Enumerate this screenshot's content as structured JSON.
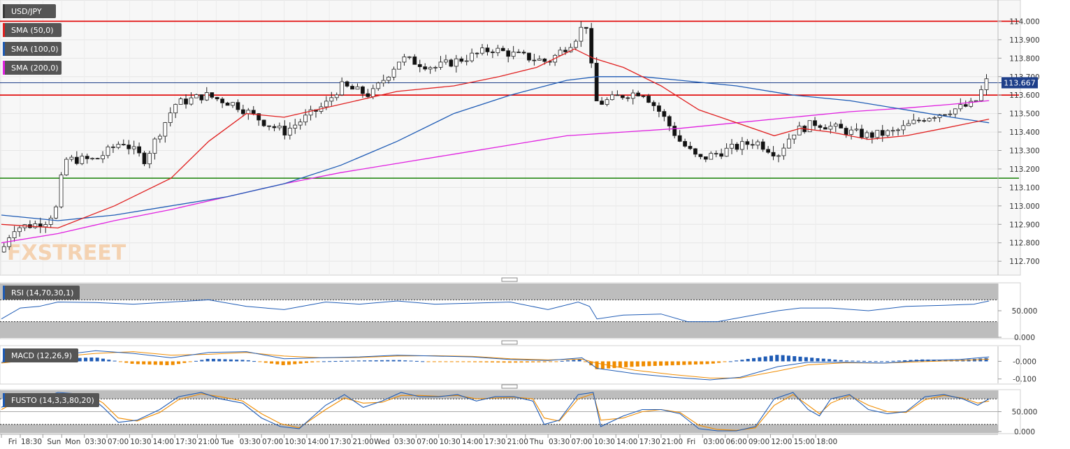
{
  "chart_data": {
    "type": "candlestick",
    "main": {
      "symbol": "USD/JPY",
      "legend": [
        {
          "label": "USD/JPY",
          "color": "#3a3a3a"
        },
        {
          "label": "SMA (50,0)",
          "color": "#e02020"
        },
        {
          "label": "SMA (100,0)",
          "color": "#1e5bb5"
        },
        {
          "label": "SMA (200,0)",
          "color": "#e020e0"
        }
      ],
      "ylim": [
        112.64,
        114.1
      ],
      "yticks": [
        "114.000",
        "113.900",
        "113.800",
        "113.700",
        "113.600",
        "113.500",
        "113.400",
        "113.300",
        "113.200",
        "113.100",
        "113.000",
        "112.900",
        "112.800",
        "112.700"
      ],
      "last_price": "113.667",
      "horizontal_lines": [
        {
          "value": 114.0,
          "color": "#e00000"
        },
        {
          "value": 113.6,
          "color": "#e00000"
        },
        {
          "value": 113.15,
          "color": "#2a8a1a"
        },
        {
          "value": 113.667,
          "color": "#1e3f8a"
        }
      ],
      "close_path": [
        [
          0,
          112.75
        ],
        [
          0.3,
          112.88
        ],
        [
          0.9,
          112.9
        ],
        [
          1.2,
          112.92
        ],
        [
          1.5,
          113.0
        ],
        [
          1.65,
          113.25
        ],
        [
          2.5,
          113.25
        ],
        [
          3.2,
          113.35
        ],
        [
          3.8,
          113.25
        ],
        [
          4.6,
          113.55
        ],
        [
          5.4,
          113.6
        ],
        [
          6.2,
          113.55
        ],
        [
          7.0,
          113.45
        ],
        [
          7.5,
          113.4
        ],
        [
          8.6,
          113.55
        ],
        [
          9.0,
          113.65
        ],
        [
          9.8,
          113.6
        ],
        [
          10.2,
          113.7
        ],
        [
          10.6,
          113.8
        ],
        [
          11.5,
          113.75
        ],
        [
          12.3,
          113.8
        ],
        [
          13.0,
          113.85
        ],
        [
          13.6,
          113.82
        ],
        [
          14.5,
          113.78
        ],
        [
          15.2,
          113.9
        ],
        [
          15.5,
          114.0
        ],
        [
          15.65,
          113.75
        ],
        [
          15.8,
          113.55
        ],
        [
          16.5,
          113.6
        ],
        [
          17.0,
          113.62
        ],
        [
          17.5,
          113.5
        ],
        [
          18.0,
          113.35
        ],
        [
          18.5,
          113.25
        ],
        [
          19.2,
          113.3
        ],
        [
          20.0,
          113.35
        ],
        [
          20.6,
          113.28
        ],
        [
          21.0,
          113.4
        ],
        [
          21.6,
          113.45
        ],
        [
          22.5,
          113.4
        ],
        [
          23.0,
          113.38
        ],
        [
          23.7,
          113.4
        ],
        [
          24.5,
          113.48
        ],
        [
          25.2,
          113.52
        ],
        [
          25.8,
          113.55
        ],
        [
          26.2,
          113.7
        ]
      ],
      "sma50": [
        [
          0,
          112.9
        ],
        [
          1.5,
          112.88
        ],
        [
          3.0,
          113.0
        ],
        [
          4.5,
          113.15
        ],
        [
          5.5,
          113.35
        ],
        [
          6.5,
          113.5
        ],
        [
          7.5,
          113.48
        ],
        [
          9.0,
          113.55
        ],
        [
          10.5,
          113.62
        ],
        [
          12.0,
          113.65
        ],
        [
          13.2,
          113.7
        ],
        [
          14.2,
          113.75
        ],
        [
          15.2,
          113.85
        ],
        [
          15.7,
          113.8
        ],
        [
          16.5,
          113.75
        ],
        [
          17.5,
          113.65
        ],
        [
          18.5,
          113.52
        ],
        [
          19.5,
          113.45
        ],
        [
          20.5,
          113.38
        ],
        [
          21.2,
          113.42
        ],
        [
          22.0,
          113.4
        ],
        [
          23.0,
          113.36
        ],
        [
          24.0,
          113.38
        ],
        [
          25.0,
          113.42
        ],
        [
          26.2,
          113.47
        ]
      ],
      "sma100": [
        [
          0,
          112.95
        ],
        [
          1.5,
          112.92
        ],
        [
          3.0,
          112.95
        ],
        [
          4.5,
          113.0
        ],
        [
          6.0,
          113.05
        ],
        [
          7.5,
          113.12
        ],
        [
          9.0,
          113.22
        ],
        [
          10.5,
          113.35
        ],
        [
          12.0,
          113.5
        ],
        [
          13.5,
          113.6
        ],
        [
          15.0,
          113.68
        ],
        [
          15.8,
          113.7
        ],
        [
          17.0,
          113.7
        ],
        [
          18.0,
          113.68
        ],
        [
          19.5,
          113.65
        ],
        [
          21.0,
          113.6
        ],
        [
          22.5,
          113.57
        ],
        [
          24.0,
          113.52
        ],
        [
          25.2,
          113.48
        ],
        [
          26.2,
          113.45
        ]
      ],
      "sma200": [
        [
          0,
          112.8
        ],
        [
          1.5,
          112.85
        ],
        [
          3.0,
          112.92
        ],
        [
          4.5,
          112.98
        ],
        [
          6.0,
          113.05
        ],
        [
          7.5,
          113.12
        ],
        [
          9.0,
          113.18
        ],
        [
          10.5,
          113.23
        ],
        [
          12.0,
          113.28
        ],
        [
          13.5,
          113.33
        ],
        [
          15.0,
          113.38
        ],
        [
          16.5,
          113.4
        ],
        [
          18.0,
          113.42
        ],
        [
          19.5,
          113.45
        ],
        [
          21.0,
          113.48
        ],
        [
          22.5,
          113.51
        ],
        [
          24.0,
          113.53
        ],
        [
          25.2,
          113.55
        ],
        [
          26.2,
          113.57
        ]
      ]
    },
    "rsi": {
      "label": "RSI (14,70,30,1)",
      "ylim": [
        0,
        100
      ],
      "yticks": [
        "50.000",
        "0.000"
      ],
      "bands": [
        70,
        30
      ],
      "values": [
        [
          0,
          35
        ],
        [
          0.5,
          55
        ],
        [
          1.0,
          58
        ],
        [
          1.5,
          66
        ],
        [
          2.5,
          65
        ],
        [
          3.5,
          62
        ],
        [
          4.5,
          66
        ],
        [
          5.5,
          70
        ],
        [
          6.5,
          58
        ],
        [
          7.5,
          52
        ],
        [
          8.6,
          66
        ],
        [
          9.5,
          62
        ],
        [
          10.5,
          68
        ],
        [
          11.5,
          62
        ],
        [
          12.5,
          64
        ],
        [
          13.5,
          66
        ],
        [
          14.5,
          52
        ],
        [
          15.3,
          66
        ],
        [
          15.6,
          58
        ],
        [
          15.8,
          35
        ],
        [
          16.5,
          42
        ],
        [
          17.5,
          44
        ],
        [
          18.2,
          30
        ],
        [
          19.0,
          30
        ],
        [
          19.8,
          40
        ],
        [
          20.6,
          50
        ],
        [
          21.2,
          55
        ],
        [
          22.0,
          55
        ],
        [
          23.0,
          50
        ],
        [
          24.0,
          58
        ],
        [
          25.0,
          60
        ],
        [
          25.8,
          62
        ],
        [
          26.2,
          68
        ]
      ]
    },
    "macd": {
      "label": "MACD (12,26,9)",
      "yticks": [
        "-0.000",
        "-0.100"
      ],
      "macd_line": [
        [
          0,
          -0.005
        ],
        [
          1.5,
          0.035
        ],
        [
          2.5,
          0.06
        ],
        [
          3.5,
          0.045
        ],
        [
          4.5,
          0.02
        ],
        [
          5.5,
          0.05
        ],
        [
          6.5,
          0.055
        ],
        [
          7.5,
          0.015
        ],
        [
          8.5,
          0.02
        ],
        [
          9.5,
          0.025
        ],
        [
          10.5,
          0.035
        ],
        [
          11.5,
          0.03
        ],
        [
          12.5,
          0.025
        ],
        [
          13.5,
          0.01
        ],
        [
          14.5,
          0.005
        ],
        [
          15.4,
          0.02
        ],
        [
          15.8,
          -0.04
        ],
        [
          16.8,
          -0.07
        ],
        [
          17.8,
          -0.09
        ],
        [
          18.8,
          -0.105
        ],
        [
          19.6,
          -0.09
        ],
        [
          20.6,
          -0.03
        ],
        [
          21.4,
          -0.005
        ],
        [
          22.4,
          -0.005
        ],
        [
          23.4,
          -0.01
        ],
        [
          24.4,
          0.005
        ],
        [
          25.4,
          0.01
        ],
        [
          26.2,
          0.025
        ]
      ],
      "signal_line": [
        [
          0,
          -0.01
        ],
        [
          1.5,
          0.025
        ],
        [
          2.5,
          0.045
        ],
        [
          3.5,
          0.055
        ],
        [
          4.5,
          0.035
        ],
        [
          5.5,
          0.04
        ],
        [
          6.5,
          0.05
        ],
        [
          7.5,
          0.03
        ],
        [
          8.5,
          0.02
        ],
        [
          9.5,
          0.022
        ],
        [
          10.5,
          0.03
        ],
        [
          11.5,
          0.032
        ],
        [
          12.5,
          0.028
        ],
        [
          13.5,
          0.015
        ],
        [
          14.5,
          0.008
        ],
        [
          15.4,
          0.012
        ],
        [
          15.8,
          -0.01
        ],
        [
          16.8,
          -0.05
        ],
        [
          17.8,
          -0.075
        ],
        [
          18.8,
          -0.095
        ],
        [
          19.6,
          -0.095
        ],
        [
          20.6,
          -0.055
        ],
        [
          21.4,
          -0.02
        ],
        [
          22.4,
          -0.008
        ],
        [
          23.4,
          -0.01
        ],
        [
          24.4,
          -0.002
        ],
        [
          25.4,
          0.005
        ],
        [
          26.2,
          0.012
        ]
      ],
      "histogram_color_pos": "#1e5bb5",
      "histogram_color_neg": "#f08c00"
    },
    "fusto": {
      "label": "FUSTO (14,3,3,80,20)",
      "yticks": [
        "50.000",
        "0.000"
      ],
      "bands": [
        80,
        20
      ],
      "k_line": [
        [
          0,
          60
        ],
        [
          0.5,
          85
        ],
        [
          1.0,
          80
        ],
        [
          1.5,
          95
        ],
        [
          2.3,
          90
        ],
        [
          2.7,
          60
        ],
        [
          3.1,
          25
        ],
        [
          3.6,
          30
        ],
        [
          4.2,
          55
        ],
        [
          4.7,
          85
        ],
        [
          5.3,
          95
        ],
        [
          5.8,
          80
        ],
        [
          6.4,
          70
        ],
        [
          6.9,
          35
        ],
        [
          7.4,
          15
        ],
        [
          7.9,
          10
        ],
        [
          8.6,
          65
        ],
        [
          9.1,
          90
        ],
        [
          9.6,
          60
        ],
        [
          10.1,
          75
        ],
        [
          10.6,
          95
        ],
        [
          11.1,
          85
        ],
        [
          11.6,
          85
        ],
        [
          12.1,
          90
        ],
        [
          12.6,
          75
        ],
        [
          13.1,
          85
        ],
        [
          13.6,
          85
        ],
        [
          14.1,
          75
        ],
        [
          14.4,
          20
        ],
        [
          14.8,
          30
        ],
        [
          15.3,
          90
        ],
        [
          15.7,
          95
        ],
        [
          15.9,
          15
        ],
        [
          16.5,
          40
        ],
        [
          17.0,
          55
        ],
        [
          17.5,
          55
        ],
        [
          18.0,
          45
        ],
        [
          18.5,
          10
        ],
        [
          19.0,
          5
        ],
        [
          19.5,
          5
        ],
        [
          20.0,
          15
        ],
        [
          20.5,
          80
        ],
        [
          21.0,
          95
        ],
        [
          21.4,
          55
        ],
        [
          21.7,
          40
        ],
        [
          22.0,
          80
        ],
        [
          22.5,
          90
        ],
        [
          23.0,
          55
        ],
        [
          23.5,
          45
        ],
        [
          24.0,
          50
        ],
        [
          24.5,
          85
        ],
        [
          25.0,
          90
        ],
        [
          25.5,
          80
        ],
        [
          25.9,
          65
        ],
        [
          26.2,
          80
        ]
      ],
      "d_line": [
        [
          0,
          55
        ],
        [
          0.5,
          78
        ],
        [
          1.0,
          82
        ],
        [
          1.5,
          90
        ],
        [
          2.3,
          92
        ],
        [
          2.7,
          70
        ],
        [
          3.1,
          35
        ],
        [
          3.6,
          28
        ],
        [
          4.2,
          48
        ],
        [
          4.7,
          78
        ],
        [
          5.3,
          92
        ],
        [
          5.8,
          85
        ],
        [
          6.4,
          75
        ],
        [
          6.9,
          45
        ],
        [
          7.4,
          22
        ],
        [
          7.9,
          12
        ],
        [
          8.6,
          55
        ],
        [
          9.1,
          82
        ],
        [
          9.6,
          70
        ],
        [
          10.1,
          72
        ],
        [
          10.6,
          88
        ],
        [
          11.1,
          88
        ],
        [
          11.6,
          86
        ],
        [
          12.1,
          88
        ],
        [
          12.6,
          80
        ],
        [
          13.1,
          82
        ],
        [
          13.6,
          84
        ],
        [
          14.1,
          80
        ],
        [
          14.4,
          35
        ],
        [
          14.8,
          28
        ],
        [
          15.3,
          80
        ],
        [
          15.7,
          92
        ],
        [
          15.9,
          30
        ],
        [
          16.5,
          35
        ],
        [
          17.0,
          50
        ],
        [
          17.5,
          55
        ],
        [
          18.0,
          48
        ],
        [
          18.5,
          18
        ],
        [
          19.0,
          8
        ],
        [
          19.5,
          6
        ],
        [
          20.0,
          12
        ],
        [
          20.5,
          65
        ],
        [
          21.0,
          90
        ],
        [
          21.4,
          65
        ],
        [
          21.7,
          45
        ],
        [
          22.0,
          70
        ],
        [
          22.5,
          88
        ],
        [
          23.0,
          65
        ],
        [
          23.5,
          50
        ],
        [
          24.0,
          48
        ],
        [
          24.5,
          78
        ],
        [
          25.0,
          88
        ],
        [
          25.5,
          82
        ],
        [
          25.9,
          70
        ],
        [
          26.2,
          75
        ]
      ],
      "k_color": "#1e5bb5",
      "d_color": "#f08c00"
    },
    "x_axis_labels": [
      "Fri",
      "18:30",
      "Sun",
      "Mon",
      "03:30",
      "07:00",
      "10:30",
      "14:00",
      "17:30",
      "21:00",
      "Tue",
      "03:30",
      "07:00",
      "10:30",
      "14:00",
      "17:30",
      "21:00",
      "Wed",
      "03:30",
      "07:00",
      "10:30",
      "14:00",
      "17:30",
      "21:00",
      "Thu",
      "03:30",
      "07:00",
      "10:30",
      "14:00",
      "17:30",
      "21:00",
      "Fri",
      "03:00",
      "06:00",
      "09:00",
      "12:00",
      "15:00",
      "18:00"
    ],
    "x_axis_positions": [
      0,
      0.5,
      1.1,
      1.6,
      2.2,
      2.8,
      3.4,
      4.0,
      4.6,
      5.2,
      5.7,
      6.3,
      6.9,
      7.5,
      8.1,
      8.7,
      9.3,
      9.8,
      10.4,
      11.0,
      11.6,
      12.2,
      12.8,
      13.4,
      13.9,
      14.5,
      15.1,
      15.7,
      16.3,
      16.9,
      17.5,
      18.0,
      18.6,
      19.2,
      19.8,
      20.4,
      21.0,
      21.6
    ]
  },
  "watermark": "FXSTREET"
}
